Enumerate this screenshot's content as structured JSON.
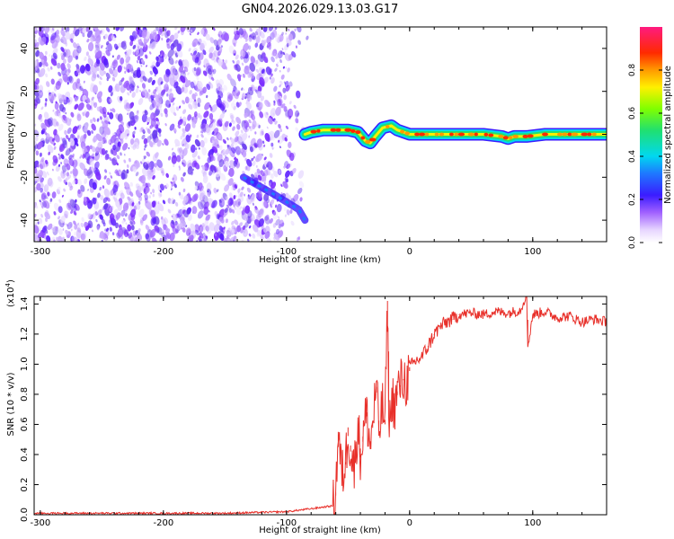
{
  "figure": {
    "title": "GN04.2026.029.13.03.G17"
  },
  "chart_data": [
    {
      "type": "heatmap",
      "xlabel": "Height of straight line (km)",
      "ylabel": "Frequency (Hz)",
      "xlim": [
        -305,
        160
      ],
      "ylim": [
        -50,
        50
      ],
      "xticks": [
        -300,
        -200,
        -100,
        0,
        100
      ],
      "yticks": [
        -40,
        -20,
        0,
        20,
        40
      ],
      "colorbar": {
        "label": "Normalized spectral amplitude",
        "range": [
          0,
          1
        ],
        "ticks": [
          "0.0",
          "0.2",
          "0.4",
          "0.6",
          "0.8"
        ],
        "tick_values": [
          0.0,
          0.2,
          0.4,
          0.6,
          0.8
        ],
        "colormap": "white-purple-blue-cyan-green-yellow-orange-red-pink"
      },
      "noise_region": {
        "x_range": [
          -305,
          -82
        ],
        "freq_range": [
          -50,
          50
        ],
        "color": "#7b2bff"
      },
      "diagonal_streak": {
        "x": [
          -135,
          -110,
          -90,
          -85
        ],
        "y": [
          -20,
          -28,
          -35,
          -40
        ]
      },
      "ridge": {
        "x": [
          -85,
          -80,
          -70,
          -60,
          -50,
          -42,
          -36,
          -32,
          -28,
          -22,
          -15,
          -10,
          -5,
          0,
          20,
          40,
          60,
          75,
          80,
          85,
          95,
          110,
          130,
          160
        ],
        "y": [
          0,
          1,
          2,
          2,
          2,
          1,
          -3,
          -4,
          -1,
          3,
          4,
          2,
          1,
          0,
          0,
          0,
          0,
          -1,
          -2,
          -1,
          -1,
          0,
          0,
          0
        ]
      }
    },
    {
      "type": "line",
      "xlabel": "Height of straight line (km)",
      "ylabel": "SNR (10 * v/v)",
      "multiplier": "(x10",
      "multiplier_exp": "4",
      "multiplier_close": ")",
      "xlim": [
        -305,
        160
      ],
      "ylim": [
        0,
        1.45
      ],
      "xticks": [
        -300,
        -200,
        -100,
        0,
        100
      ],
      "yticks": [
        0.0,
        0.2,
        0.4,
        0.6,
        0.8,
        1.0,
        1.2,
        1.4
      ],
      "ytick_labels": [
        "0.0",
        "0.2",
        "0.4",
        "0.6",
        "0.8",
        "1.0",
        "1.2",
        "1.4"
      ],
      "series": [
        {
          "color": "#e8302a",
          "x": [
            -305,
            -250,
            -200,
            -150,
            -100,
            -80,
            -62,
            -60,
            -58,
            -55,
            -52,
            -50,
            -48,
            -45,
            -42,
            -40,
            -38,
            -35,
            -32,
            -30,
            -27,
            -25,
            -22,
            -20,
            -18,
            -17,
            -16,
            -14,
            -12,
            -10,
            -8,
            -5,
            -2,
            0,
            5,
            10,
            15,
            20,
            25,
            30,
            35,
            40,
            50,
            60,
            70,
            80,
            90,
            95,
            96,
            100,
            110,
            120,
            130,
            140,
            150,
            160
          ],
          "y": [
            0.01,
            0.01,
            0.01,
            0.01,
            0.02,
            0.04,
            0.06,
            0.15,
            0.55,
            0.25,
            0.35,
            0.58,
            0.42,
            0.3,
            0.62,
            0.38,
            0.52,
            0.68,
            0.45,
            0.62,
            0.85,
            0.55,
            0.72,
            0.6,
            1.42,
            0.75,
            0.62,
            0.78,
            0.72,
            0.82,
            0.86,
            0.9,
            0.88,
            0.98,
            1.02,
            1.05,
            1.12,
            1.2,
            1.25,
            1.28,
            1.3,
            1.33,
            1.34,
            1.33,
            1.35,
            1.34,
            1.36,
            1.47,
            1.12,
            1.33,
            1.35,
            1.31,
            1.32,
            1.28,
            1.3,
            1.28
          ]
        }
      ]
    }
  ]
}
